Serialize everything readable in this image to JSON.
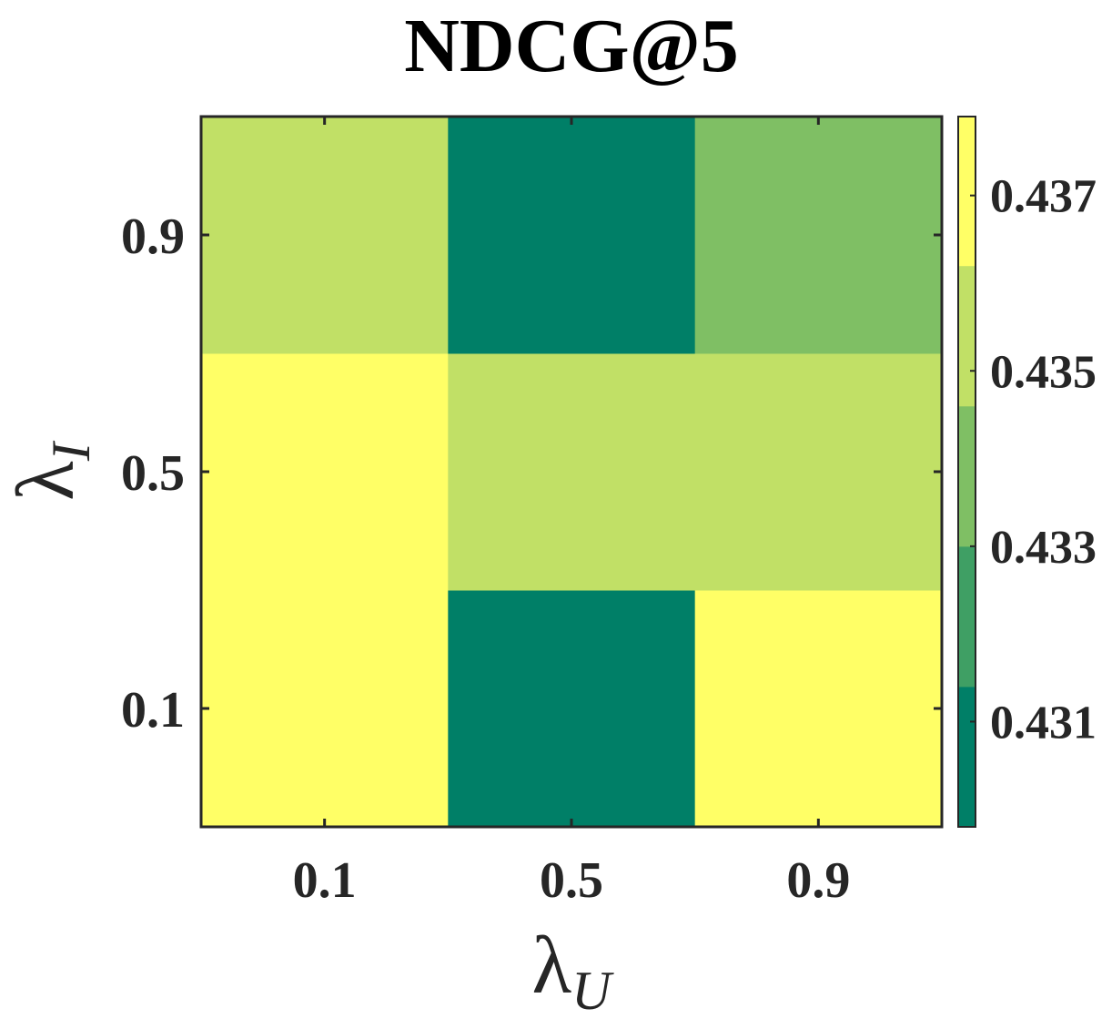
{
  "chart_data": {
    "type": "heatmap",
    "title": "NDCG@5",
    "xlabel": {
      "symbol": "λ",
      "subscript": "U"
    },
    "ylabel": {
      "symbol": "λ",
      "subscript": "I"
    },
    "x_categories": [
      "0.1",
      "0.5",
      "0.9"
    ],
    "y_categories": [
      "0.1",
      "0.5",
      "0.9"
    ],
    "values": [
      [
        0.4372,
        0.4298,
        0.4372
      ],
      [
        0.4372,
        0.4352,
        0.4352
      ],
      [
        0.4352,
        0.4298,
        0.4342
      ]
    ],
    "colorbar": {
      "range": [
        0.4298,
        0.4379
      ],
      "ticks": [
        0.431,
        0.433,
        0.435,
        0.437
      ],
      "tick_labels": [
        "0.431",
        "0.433",
        "0.435",
        "0.437"
      ],
      "levels": [
        {
          "from": 0.4298,
          "to": 0.4314,
          "color": "#007f67"
        },
        {
          "from": 0.4314,
          "to": 0.433,
          "color": "#3f9f64"
        },
        {
          "from": 0.433,
          "to": 0.4346,
          "color": "#7fbf64"
        },
        {
          "from": 0.4346,
          "to": 0.4362,
          "color": "#c1e066"
        },
        {
          "from": 0.4362,
          "to": 0.4379,
          "color": "#ffff66"
        }
      ]
    },
    "colormap": "summer",
    "grid": false
  }
}
